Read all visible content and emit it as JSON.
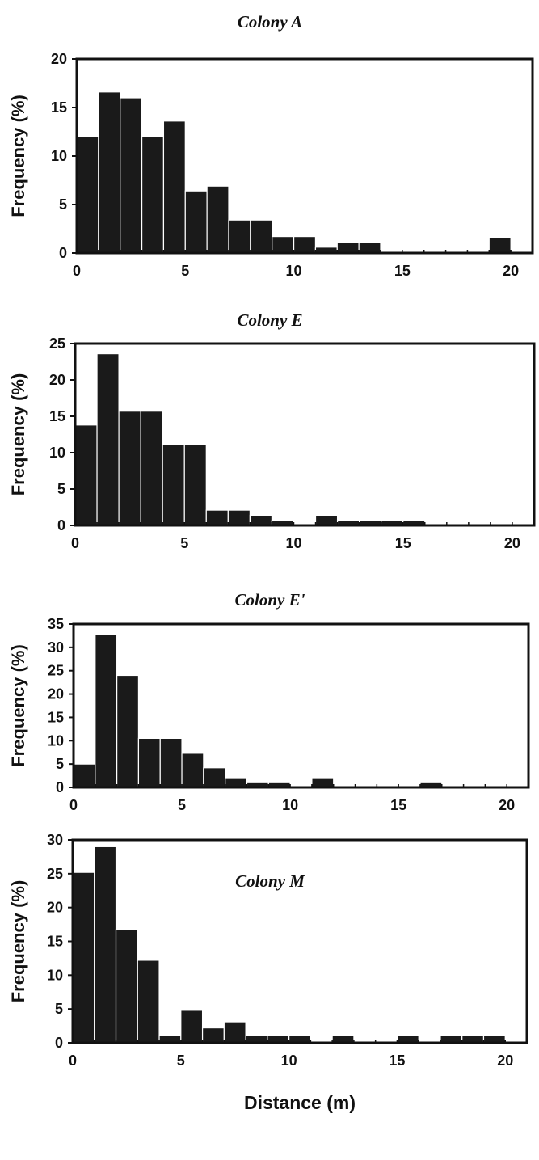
{
  "chart_data": [
    {
      "type": "bar",
      "title": "Colony A",
      "xlabel": "",
      "ylabel": "Frequency (%)",
      "xlim": [
        0,
        21
      ],
      "ylim": [
        0,
        20
      ],
      "xticks": [
        0,
        5,
        10,
        15,
        20
      ],
      "yticks": [
        0,
        5,
        10,
        15,
        20
      ],
      "bin_width": 1,
      "x": [
        0,
        1,
        2,
        3,
        4,
        5,
        6,
        7,
        8,
        9,
        10,
        11,
        12,
        13,
        14,
        15,
        16,
        17,
        18,
        19,
        20
      ],
      "values": [
        12.0,
        16.6,
        16.0,
        12.0,
        13.6,
        6.4,
        6.9,
        3.4,
        3.4,
        1.7,
        1.7,
        0.6,
        1.1,
        1.1,
        0,
        0,
        0,
        0,
        0,
        1.6,
        0
      ]
    },
    {
      "type": "bar",
      "title": "Colony E",
      "xlabel": "",
      "ylabel": "Frequency (%)",
      "xlim": [
        0,
        21
      ],
      "ylim": [
        0,
        25
      ],
      "xticks": [
        0,
        5,
        10,
        15,
        20
      ],
      "yticks": [
        0,
        5,
        10,
        15,
        20,
        25
      ],
      "bin_width": 1,
      "x": [
        0,
        1,
        2,
        3,
        4,
        5,
        6,
        7,
        8,
        9,
        10,
        11,
        12,
        13,
        14,
        15,
        16,
        17,
        18,
        19,
        20
      ],
      "values": [
        13.8,
        23.6,
        15.7,
        15.7,
        11.1,
        11.1,
        2.1,
        2.1,
        1.4,
        0.7,
        0,
        1.4,
        0.7,
        0.7,
        0.7,
        0.7,
        0,
        0,
        0,
        0,
        0
      ]
    },
    {
      "type": "bar",
      "title": "Colony E'",
      "xlabel": "",
      "ylabel": "Frequency (%)",
      "xlim": [
        0,
        21
      ],
      "ylim": [
        0,
        35
      ],
      "xticks": [
        0,
        5,
        10,
        15,
        20
      ],
      "yticks": [
        0,
        5,
        10,
        15,
        20,
        25,
        30,
        35
      ],
      "bin_width": 1,
      "x": [
        0,
        1,
        2,
        3,
        4,
        5,
        6,
        7,
        8,
        9,
        10,
        11,
        12,
        13,
        14,
        15,
        16,
        17,
        18,
        19,
        20
      ],
      "values": [
        5.0,
        32.8,
        24.0,
        10.5,
        10.5,
        7.3,
        4.2,
        1.9,
        1.0,
        1.0,
        0,
        1.9,
        0,
        0,
        0,
        0,
        1.0,
        0,
        0,
        0,
        0
      ]
    },
    {
      "type": "bar",
      "title": "Colony M",
      "xlabel": "Distance (m)",
      "ylabel": "Frequency (%)",
      "xlim": [
        0,
        21
      ],
      "ylim": [
        0,
        30
      ],
      "xticks": [
        0,
        5,
        10,
        15,
        20
      ],
      "yticks": [
        0,
        5,
        10,
        15,
        20,
        25,
        30
      ],
      "bin_width": 1,
      "x": [
        0,
        1,
        2,
        3,
        4,
        5,
        6,
        7,
        8,
        9,
        10,
        11,
        12,
        13,
        14,
        15,
        16,
        17,
        18,
        19,
        20
      ],
      "values": [
        25.2,
        29.0,
        16.8,
        12.2,
        1.1,
        4.8,
        2.2,
        3.1,
        1.1,
        1.1,
        1.1,
        0,
        1.1,
        0,
        0,
        1.1,
        0,
        1.1,
        1.1,
        1.1,
        0
      ]
    }
  ]
}
